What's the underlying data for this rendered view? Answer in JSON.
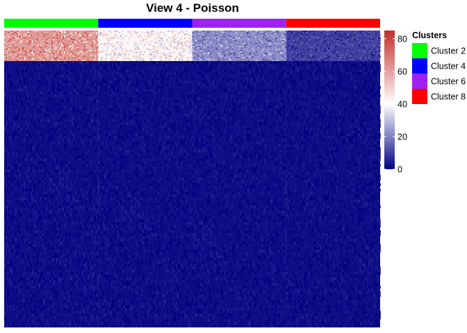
{
  "chart_data": {
    "type": "heatmap",
    "title": "View 4 - Poisson",
    "column_annotation": {
      "name": "Clusters",
      "groups": [
        {
          "label": "Cluster 2",
          "color": "#00ff00"
        },
        {
          "label": "Cluster 4",
          "color": "#0000ff"
        },
        {
          "label": "Cluster 6",
          "color": "#a020f0"
        },
        {
          "label": "Cluster 8",
          "color": "#ff0000"
        }
      ]
    },
    "row_blocks": [
      {
        "block": "top",
        "mean_values_by_cluster": [
          62,
          42,
          22,
          10
        ]
      },
      {
        "block": "bottom",
        "mean_values_by_cluster": [
          2,
          2,
          2,
          2
        ]
      }
    ],
    "color_scale": {
      "min": 0,
      "max": 85,
      "ticks": [
        0,
        20,
        40,
        60,
        80
      ],
      "colors": [
        {
          "value": 0,
          "color": "#000080"
        },
        {
          "value": 40,
          "color": "#ffffff"
        },
        {
          "value": 85,
          "color": "#c0302a"
        }
      ]
    }
  }
}
